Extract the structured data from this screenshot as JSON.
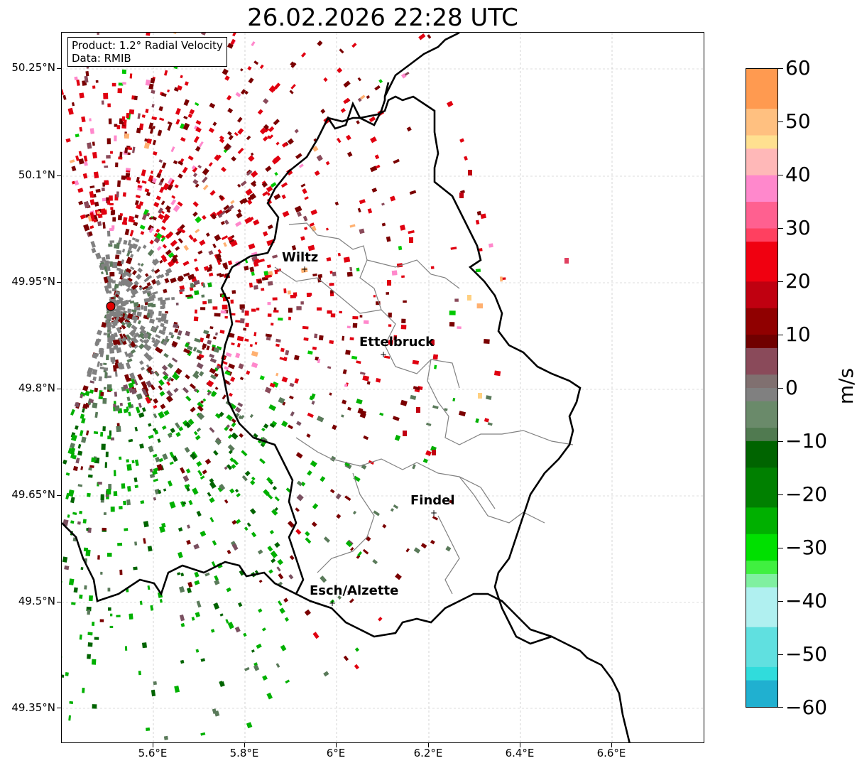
{
  "title": "26.02.2026 22:28 UTC",
  "info": {
    "product": "Product: 1.2° Radial Velocity",
    "data": "Data: RMIB"
  },
  "axes": {
    "lat_ticks": [
      "50.25°N",
      "50.1°N",
      "49.95°N",
      "49.8°N",
      "49.65°N",
      "49.5°N",
      "49.35°N"
    ],
    "lon_ticks": [
      "5.6°E",
      "5.8°E",
      "6°E",
      "6.2°E",
      "6.4°E",
      "6.6°E"
    ]
  },
  "cities": [
    {
      "name": "Wiltz"
    },
    {
      "name": "Ettelbruck"
    },
    {
      "name": "Findel"
    },
    {
      "name": "Esch/Alzette"
    }
  ],
  "colorbar": {
    "unit": "m/s",
    "ticks": [
      "60",
      "50",
      "40",
      "30",
      "20",
      "10",
      "0",
      "−10",
      "−20",
      "−30",
      "−40",
      "−50",
      "−60"
    ],
    "range": [
      -60,
      60
    ]
  },
  "colors": {
    "positive_dark": "#7a0000",
    "positive_red": "#e00010",
    "positive_pink": "#ff88cc",
    "positive_peach": "#ffb070",
    "neutral": "#808080",
    "negative_green": "#00b000",
    "negative_dark_green": "#006400",
    "negative_cyan": "#30dcdc",
    "negative_blue": "#2080c0",
    "radar_site": "#e00000",
    "border": "#000000",
    "canton_lines": "#808080",
    "grid": "#bbbbbb"
  }
}
